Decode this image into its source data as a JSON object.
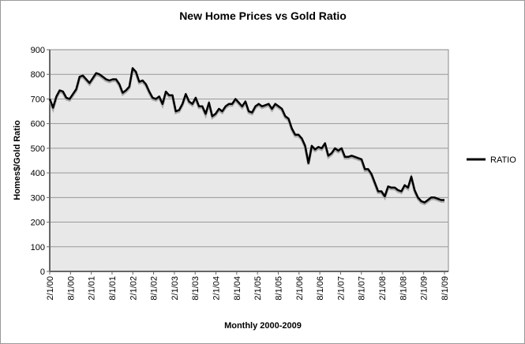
{
  "chart_data": {
    "type": "line",
    "title": "New Home Prices vs Gold Ratio",
    "xlabel": "Monthly 2000-2009",
    "ylabel": "Homes$/Gold Ratio",
    "ylim": [
      0,
      900
    ],
    "yticks": [
      "0",
      "100",
      "200",
      "300",
      "400",
      "500",
      "600",
      "700",
      "800",
      "900"
    ],
    "xticks": [
      "2/1/00",
      "8/1/00",
      "2/1/01",
      "8/1/01",
      "2/1/02",
      "8/1/02",
      "2/1/03",
      "8/1/03",
      "2/1/04",
      "8/1/04",
      "2/1/05",
      "8/1/05",
      "2/1/06",
      "8/1/06",
      "2/1/07",
      "8/1/07",
      "2/1/08",
      "8/1/08",
      "2/1/09",
      "8/1/09"
    ],
    "grid": true,
    "legend_placement": "right",
    "series": [
      {
        "name": "RATIO",
        "color": "#000000",
        "values": [
          700,
          665,
          710,
          735,
          730,
          705,
          700,
          720,
          740,
          790,
          795,
          780,
          765,
          785,
          805,
          800,
          790,
          780,
          775,
          780,
          780,
          760,
          725,
          735,
          750,
          825,
          810,
          770,
          775,
          760,
          730,
          705,
          700,
          710,
          680,
          730,
          715,
          715,
          650,
          655,
          680,
          720,
          690,
          680,
          705,
          670,
          670,
          640,
          685,
          630,
          640,
          660,
          650,
          670,
          680,
          680,
          700,
          685,
          670,
          690,
          650,
          645,
          670,
          680,
          670,
          675,
          680,
          660,
          680,
          670,
          660,
          630,
          620,
          580,
          555,
          555,
          540,
          510,
          440,
          510,
          495,
          505,
          500,
          520,
          470,
          480,
          500,
          490,
          500,
          465,
          465,
          470,
          465,
          460,
          455,
          415,
          415,
          395,
          360,
          325,
          325,
          305,
          345,
          340,
          340,
          330,
          325,
          350,
          340,
          385,
          330,
          300,
          285,
          280,
          290,
          300,
          300,
          295,
          290,
          290
        ]
      }
    ]
  }
}
